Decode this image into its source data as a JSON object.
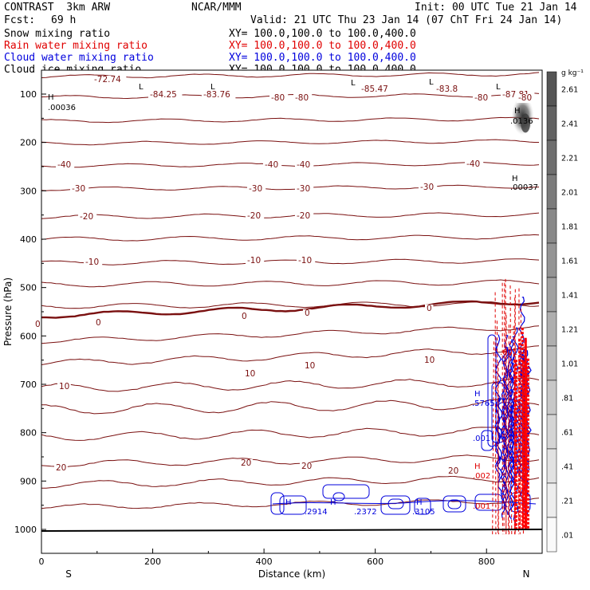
{
  "header": {
    "model": "CONTRAST  3km ARW",
    "org": "NCAR/MMM",
    "init": "Init: 00 UTC Tue 21 Jan 14",
    "fcst_label": "Fcst:",
    "fcst_value": "69 h",
    "valid": "Valid: 21 UTC Thu 23 Jan 14 (07 ChT Fri 24 Jan 14)"
  },
  "fields": [
    {
      "name": "Snow mixing ratio",
      "xy": "XY= 100.0,100.0 to 100.0,400.0",
      "color": "#000000"
    },
    {
      "name": "Rain water mixing ratio",
      "xy": "XY= 100.0,100.0 to 100.0,400.0",
      "color": "#e00000"
    },
    {
      "name": "Cloud water mixing ratio",
      "xy": "XY= 100.0,100.0 to 100.0,400.0",
      "color": "#0000dd"
    },
    {
      "name": "Cloud ice mixing ratio",
      "xy": "XY= 100.0,100.0 to 100.0,400.0",
      "color": "#000000"
    }
  ],
  "colorbar": {
    "unit": "g kg⁻¹",
    "labels": [
      "2.61",
      "2.41",
      "2.21",
      "2.01",
      "1.81",
      "1.61",
      "1.41",
      "1.21",
      "1.01",
      ".81",
      ".61",
      ".41",
      ".21",
      ".01"
    ]
  },
  "temperature_labels": [
    "-72.74",
    "-84.25",
    "-83.76",
    "-85.47",
    "-83.8",
    "-87.81",
    "-80",
    "-80",
    "-80",
    "-80",
    "-40",
    "-40",
    "-40",
    "-40",
    "-30",
    "-30",
    "-30",
    "-30",
    "-20",
    "-20",
    "-20",
    "-10",
    "-10",
    "-10",
    "0",
    "0",
    "0",
    "0",
    "0",
    "10",
    "10",
    "10",
    "10",
    "20",
    "20",
    "20",
    "20"
  ],
  "extrema_labels": [
    "L",
    "L",
    "L",
    "L",
    "L",
    "H",
    "H",
    "H",
    "H",
    "H",
    "H",
    "H",
    "H",
    ".00036",
    ".0136",
    ".00037",
    ".5765",
    ".001",
    ".002",
    ".001",
    ".2914",
    ".2372",
    ".3105",
    ".001"
  ],
  "chart_data": {
    "type": "contour",
    "xlabel": "Distance (km)",
    "ylabel": "Pressure (hPa)",
    "xlim": [
      0,
      900
    ],
    "ylim": [
      1050,
      50
    ],
    "y_scale": "log",
    "x_ticks": [
      0,
      200,
      400,
      600,
      800
    ],
    "y_ticks": [
      100,
      200,
      300,
      400,
      500,
      600,
      700,
      800,
      900,
      1000
    ],
    "endpoint_labels": {
      "left": "S",
      "right": "N"
    },
    "temperature_contours_C": [
      -80,
      -70,
      -60,
      -50,
      -40,
      -30,
      -20,
      -10,
      0,
      10,
      20
    ],
    "temperature_minima_C": [
      {
        "x": 180,
        "p": 105,
        "value": -84.25
      },
      {
        "x": 280,
        "p": 105,
        "value": -83.76
      },
      {
        "x": 570,
        "p": 100,
        "value": -85.47
      },
      {
        "x": 700,
        "p": 100,
        "value": -83.8
      },
      {
        "x": 840,
        "p": 105,
        "value": -87.81
      }
    ],
    "cloud_water_maxima_g_per_kg": [
      {
        "x": 785,
        "p": 760,
        "value": 0.5765
      },
      {
        "x": 465,
        "p": 965,
        "value": 0.2914
      },
      {
        "x": 570,
        "p": 965,
        "value": 0.2372
      },
      {
        "x": 700,
        "p": 965,
        "value": 0.3105
      },
      {
        "x": 790,
        "p": 840,
        "value": 0.001
      }
    ],
    "rain_water_maxima_g_per_kg": [
      {
        "x": 790,
        "p": 885,
        "value": 0.002
      },
      {
        "x": 790,
        "p": 960,
        "value": 0.001
      }
    ],
    "ice_maxima_g_per_kg": [
      {
        "x": 15,
        "p": 110,
        "value": 0.00036
      },
      {
        "x": 860,
        "p": 150,
        "value": 0.0136
      },
      {
        "x": 855,
        "p": 290,
        "value": 0.00037
      }
    ]
  }
}
